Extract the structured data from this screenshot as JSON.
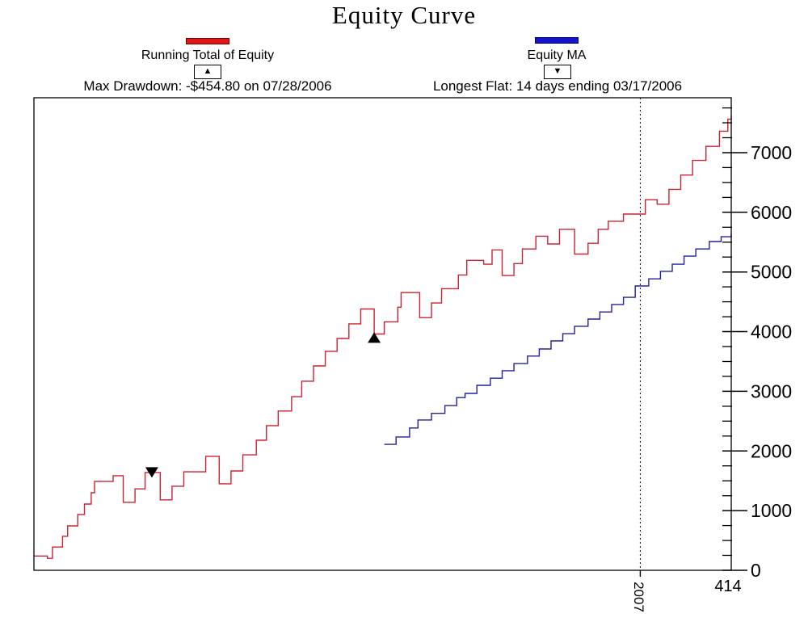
{
  "title": "Equity Curve",
  "legend": {
    "running_total": {
      "label": "Running Total of Equity",
      "swatch_color": "#e01515",
      "marker_symbol": "▲",
      "annotation": "Max Drawdown: -$454.80 on 07/28/2006"
    },
    "equity_ma": {
      "label": "Equity MA",
      "swatch_color": "#1414cc",
      "marker_symbol": "▼",
      "annotation": "Longest Flat: 14 days ending 03/17/2006"
    }
  },
  "chart_data": {
    "type": "line",
    "interpolation": "step-after",
    "title": "Equity Curve",
    "x_axis": {
      "min": 0,
      "max": 414,
      "end_label": "414"
    },
    "y_axis": {
      "min": 0,
      "max": 7920,
      "major_tick_step": 1000,
      "minor_tick_step": 250,
      "tick_labels": [
        0,
        1000,
        2000,
        3000,
        4000,
        5000,
        6000,
        7000
      ],
      "side": "right"
    },
    "vline": {
      "x": 360,
      "label": "2007",
      "style": "dashed"
    },
    "series": [
      {
        "name": "Running Total of Equity",
        "color": "#cc2233",
        "points": [
          [
            0,
            240
          ],
          [
            8,
            200
          ],
          [
            11,
            390
          ],
          [
            17,
            570
          ],
          [
            20,
            745
          ],
          [
            26,
            935
          ],
          [
            30,
            1110
          ],
          [
            34,
            1300
          ],
          [
            36,
            1490
          ],
          [
            47,
            1585
          ],
          [
            53,
            1140
          ],
          [
            60,
            1365
          ],
          [
            66,
            1640
          ],
          [
            75,
            1180
          ],
          [
            82,
            1410
          ],
          [
            89,
            1650
          ],
          [
            102,
            1910
          ],
          [
            110,
            1450
          ],
          [
            117,
            1665
          ],
          [
            124,
            1935
          ],
          [
            132,
            2180
          ],
          [
            138,
            2425
          ],
          [
            145,
            2670
          ],
          [
            153,
            2910
          ],
          [
            159,
            3170
          ],
          [
            166,
            3425
          ],
          [
            173,
            3670
          ],
          [
            180,
            3885
          ],
          [
            187,
            4130
          ],
          [
            194,
            4380
          ],
          [
            202,
            3960
          ],
          [
            208,
            4165
          ],
          [
            216,
            4410
          ],
          [
            218,
            4655
          ],
          [
            229,
            4235
          ],
          [
            236,
            4480
          ],
          [
            242,
            4720
          ],
          [
            252,
            4950
          ],
          [
            257,
            5195
          ],
          [
            267,
            5130
          ],
          [
            272,
            5370
          ],
          [
            278,
            4940
          ],
          [
            285,
            5140
          ],
          [
            290,
            5385
          ],
          [
            298,
            5600
          ],
          [
            305,
            5470
          ],
          [
            312,
            5715
          ],
          [
            321,
            5300
          ],
          [
            329,
            5480
          ],
          [
            335,
            5715
          ],
          [
            341,
            5850
          ],
          [
            350,
            5970
          ],
          [
            363,
            6210
          ],
          [
            370,
            6135
          ],
          [
            377,
            6385
          ],
          [
            384,
            6625
          ],
          [
            391,
            6870
          ],
          [
            399,
            7105
          ],
          [
            407,
            7360
          ],
          [
            412,
            7560
          ],
          [
            414,
            7620
          ]
        ]
      },
      {
        "name": "Equity MA",
        "color": "#2020a0",
        "points": [
          [
            208,
            2110
          ],
          [
            215,
            2235
          ],
          [
            223,
            2385
          ],
          [
            228,
            2520
          ],
          [
            236,
            2630
          ],
          [
            244,
            2760
          ],
          [
            251,
            2895
          ],
          [
            256,
            2965
          ],
          [
            263,
            3100
          ],
          [
            271,
            3220
          ],
          [
            278,
            3345
          ],
          [
            285,
            3465
          ],
          [
            293,
            3590
          ],
          [
            300,
            3710
          ],
          [
            307,
            3845
          ],
          [
            314,
            3965
          ],
          [
            321,
            4090
          ],
          [
            329,
            4210
          ],
          [
            336,
            4330
          ],
          [
            343,
            4455
          ],
          [
            350,
            4575
          ],
          [
            357,
            4765
          ],
          [
            365,
            4885
          ],
          [
            372,
            5010
          ],
          [
            379,
            5130
          ],
          [
            386,
            5265
          ],
          [
            393,
            5385
          ],
          [
            401,
            5510
          ],
          [
            408,
            5590
          ],
          [
            414,
            5640
          ]
        ]
      }
    ],
    "markers": [
      {
        "symbol": "triangle-down",
        "x": 70,
        "y": 1640,
        "color": "#000000",
        "note": "Longest Flat: 14 days ending 03/17/2006"
      },
      {
        "symbol": "triangle-up",
        "x": 202,
        "y": 3900,
        "color": "#000000",
        "note": "Max Drawdown: -$454.80 on 07/28/2006"
      }
    ]
  }
}
